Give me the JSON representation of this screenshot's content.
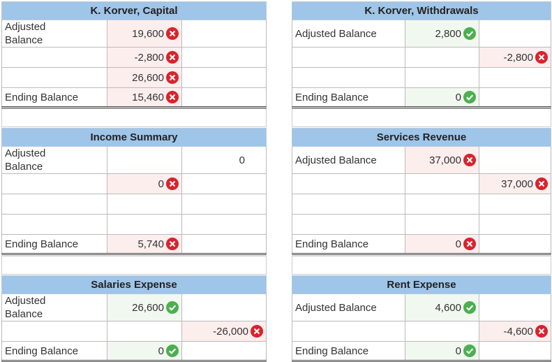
{
  "accounts": [
    {
      "title": "K. Korver, Capital",
      "rows": [
        {
          "label": "Adjusted Balance",
          "debit": {
            "text": "19,600",
            "status": "incorrect"
          }
        },
        {
          "debit": {
            "text": "-2,800",
            "status": "incorrect"
          }
        },
        {
          "debit": {
            "text": "26,600",
            "status": "incorrect"
          }
        },
        {
          "label": "Ending Balance",
          "debit": {
            "text": "15,460",
            "status": "incorrect"
          }
        }
      ]
    },
    {
      "title": "K. Korver, Withdrawals",
      "rows": [
        {
          "label": "Adjusted Balance",
          "debit": {
            "text": "2,800",
            "status": "correct"
          }
        },
        {
          "credit": {
            "text": "-2,800",
            "status": "incorrect"
          }
        },
        {},
        {
          "label": "Ending Balance",
          "debit": {
            "text": "0",
            "status": "correct"
          }
        }
      ]
    },
    {
      "title": "Income Summary",
      "rows": [
        {
          "label": "Adjusted Balance",
          "credit": {
            "text": "0"
          }
        },
        {
          "debit": {
            "text": "0",
            "status": "incorrect"
          }
        },
        {},
        {},
        {
          "label": "Ending Balance",
          "debit": {
            "text": "5,740",
            "status": "incorrect"
          }
        }
      ]
    },
    {
      "title": "Services Revenue",
      "rows": [
        {
          "label": "Adjusted Balance",
          "debit": {
            "text": "37,000",
            "status": "incorrect"
          }
        },
        {
          "credit": {
            "text": "37,000",
            "status": "incorrect"
          }
        },
        {},
        {},
        {
          "label": "Ending Balance",
          "debit": {
            "text": "0",
            "status": "incorrect"
          }
        }
      ]
    },
    {
      "title": "Salaries Expense",
      "rows": [
        {
          "label": "Adjusted Balance",
          "debit": {
            "text": "26,600",
            "status": "correct"
          }
        },
        {
          "credit": {
            "text": "-26,000",
            "status": "incorrect"
          }
        },
        {
          "label": "Ending Balance",
          "debit": {
            "text": "0",
            "status": "correct"
          }
        }
      ]
    },
    {
      "title": "Rent Expense",
      "rows": [
        {
          "label": "Adjusted Balance",
          "debit": {
            "text": "4,600",
            "status": "correct"
          }
        },
        {
          "credit": {
            "text": "-4,600",
            "status": "incorrect"
          }
        },
        {
          "label": "Ending Balance",
          "debit": {
            "text": "0",
            "status": "correct"
          }
        }
      ]
    }
  ]
}
